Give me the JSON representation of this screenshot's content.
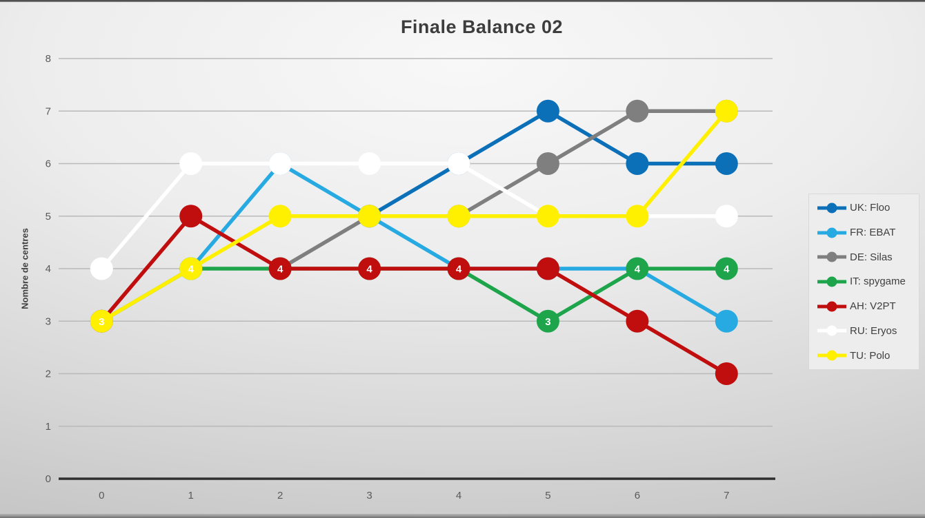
{
  "chart_data": {
    "type": "line",
    "title": "Finale Balance 02",
    "xlabel": "",
    "ylabel": "Nombre de centres",
    "x": [
      0,
      1,
      2,
      3,
      4,
      5,
      6,
      7
    ],
    "ylim": [
      0,
      8
    ],
    "yticks": [
      0,
      1,
      2,
      3,
      4,
      5,
      6,
      7,
      8
    ],
    "grid": true,
    "legend_position": "right",
    "marker": "circle",
    "series": [
      {
        "name": "UK: Floo",
        "color": "#0C70B8",
        "values": [
          null,
          null,
          null,
          5,
          6,
          7,
          6,
          6
        ]
      },
      {
        "name": "FR: EBAT",
        "color": "#27AAE1",
        "values": [
          null,
          4,
          6,
          5,
          4,
          4,
          4,
          3
        ]
      },
      {
        "name": "DE: Silas",
        "color": "#7F7F7F",
        "values": [
          null,
          null,
          4,
          5,
          5,
          6,
          7,
          7
        ]
      },
      {
        "name": "IT: spygame",
        "color": "#1EA54C",
        "values": [
          3,
          4,
          4,
          4,
          4,
          3,
          4,
          4
        ],
        "data_labels": true
      },
      {
        "name": "AH: V2PT",
        "color": "#C00E0E",
        "values": [
          3,
          5,
          4,
          4,
          4,
          4,
          3,
          2
        ]
      },
      {
        "name": "RU: Eryos",
        "color": "#FFFFFF",
        "values": [
          4,
          6,
          6,
          6,
          6,
          5,
          5,
          5
        ]
      },
      {
        "name": "TU: Polo",
        "color": "#FFF000",
        "values": [
          3,
          4,
          5,
          5,
          5,
          5,
          5,
          7
        ]
      }
    ],
    "colors": {
      "gridline": "#b9b9b9",
      "axis_line": "#2f2f2f",
      "tick_text": "#595959",
      "data_label_text": "#ffffff"
    }
  }
}
